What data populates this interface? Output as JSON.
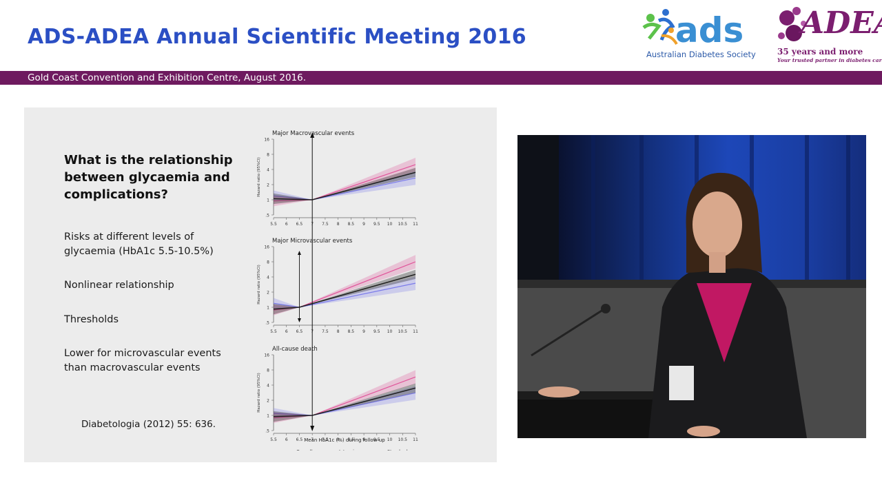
{
  "header": {
    "title": "ADS-ADEA Annual Scientific Meeting 2016",
    "venue": "Gold Coast Convention and Exhibition Centre, August 2016.",
    "colors": {
      "title": "#2b4fc4",
      "band": "#6e1a5f"
    }
  },
  "logos": {
    "ads": {
      "word": "ads",
      "subtitle": "Australian Diabetes Society"
    },
    "adea": {
      "word": "ADEA",
      "years": "35 years and more",
      "tagline": "Your trusted partner in diabetes care"
    }
  },
  "slide": {
    "question": "What is the relationship between glycaemia and complications?",
    "points": [
      "Risks at different levels of glycaemia (HbA1c 5.5-10.5%)",
      "Nonlinear relationship",
      "Thresholds",
      "Lower for microvascular events than macrovascular events"
    ],
    "citation": "Diabetologia (2012) 55: 636."
  },
  "chart_data": [
    {
      "type": "line",
      "title": "Major Macrovascular events",
      "ylabel": "Hazard ratio (95%CI)",
      "xlabel": "",
      "x_ticks": [
        "5.5",
        "6",
        "6.5",
        "7",
        "7.5",
        "8",
        "8.5",
        "9",
        "9.5",
        "10",
        "10.5",
        "11"
      ],
      "y_ticks": [
        "16",
        "8",
        "4",
        "2",
        "1",
        ".5"
      ],
      "ylim": [
        0.5,
        16
      ],
      "x": [
        5.5,
        7,
        11
      ],
      "series": [
        {
          "name": "Overall",
          "values": [
            1.05,
            1.0,
            3.5
          ]
        },
        {
          "name": "Intensive",
          "values": [
            0.95,
            1.0,
            5.0
          ]
        },
        {
          "name": "Standard",
          "values": [
            1.2,
            1.0,
            2.7
          ]
        }
      ],
      "annotation_x": 7
    },
    {
      "type": "line",
      "title": "Major Microvascular events",
      "ylabel": "Hazard ratio (95%CI)",
      "xlabel": "",
      "x_ticks": [
        "5.5",
        "6",
        "6.5",
        "7",
        "7.5",
        "8",
        "8.5",
        "9",
        "9.5",
        "10",
        "10.5",
        "11"
      ],
      "y_ticks": [
        "16",
        "8",
        "4",
        "2",
        "1",
        ".5"
      ],
      "ylim": [
        0.5,
        16
      ],
      "x": [
        5.5,
        6.5,
        11
      ],
      "series": [
        {
          "name": "Overall",
          "values": [
            0.92,
            1.0,
            4.5
          ]
        },
        {
          "name": "Intensive",
          "values": [
            0.88,
            1.0,
            8.0
          ]
        },
        {
          "name": "Standard",
          "values": [
            1.2,
            1.0,
            3.0
          ]
        }
      ],
      "annotation_x": 6.5
    },
    {
      "type": "line",
      "title": "All-cause death",
      "ylabel": "Hazard ratio (95%CI)",
      "xlabel": "Mean HbA1c (%) during follow-up",
      "x_ticks": [
        "5.5",
        "6",
        "6.5",
        "7",
        "7.5",
        "8",
        "8.5",
        "9",
        "9.5",
        "10",
        "10.5",
        "11"
      ],
      "y_ticks": [
        "16",
        "8",
        "4",
        "2",
        "1",
        ".5"
      ],
      "ylim": [
        0.5,
        16
      ],
      "x": [
        5.5,
        7,
        11
      ],
      "series": [
        {
          "name": "Overall",
          "values": [
            0.95,
            1.0,
            3.5
          ]
        },
        {
          "name": "Intensive",
          "values": [
            0.9,
            1.0,
            5.8
          ]
        },
        {
          "name": "Standard",
          "values": [
            1.1,
            1.0,
            2.8
          ]
        }
      ],
      "annotation_x": 7
    }
  ],
  "legend": [
    {
      "name": "Overall",
      "color": "#222222"
    },
    {
      "name": "Intensive",
      "color": "#e0559a"
    },
    {
      "name": "Standard",
      "color": "#7b7bea"
    }
  ]
}
